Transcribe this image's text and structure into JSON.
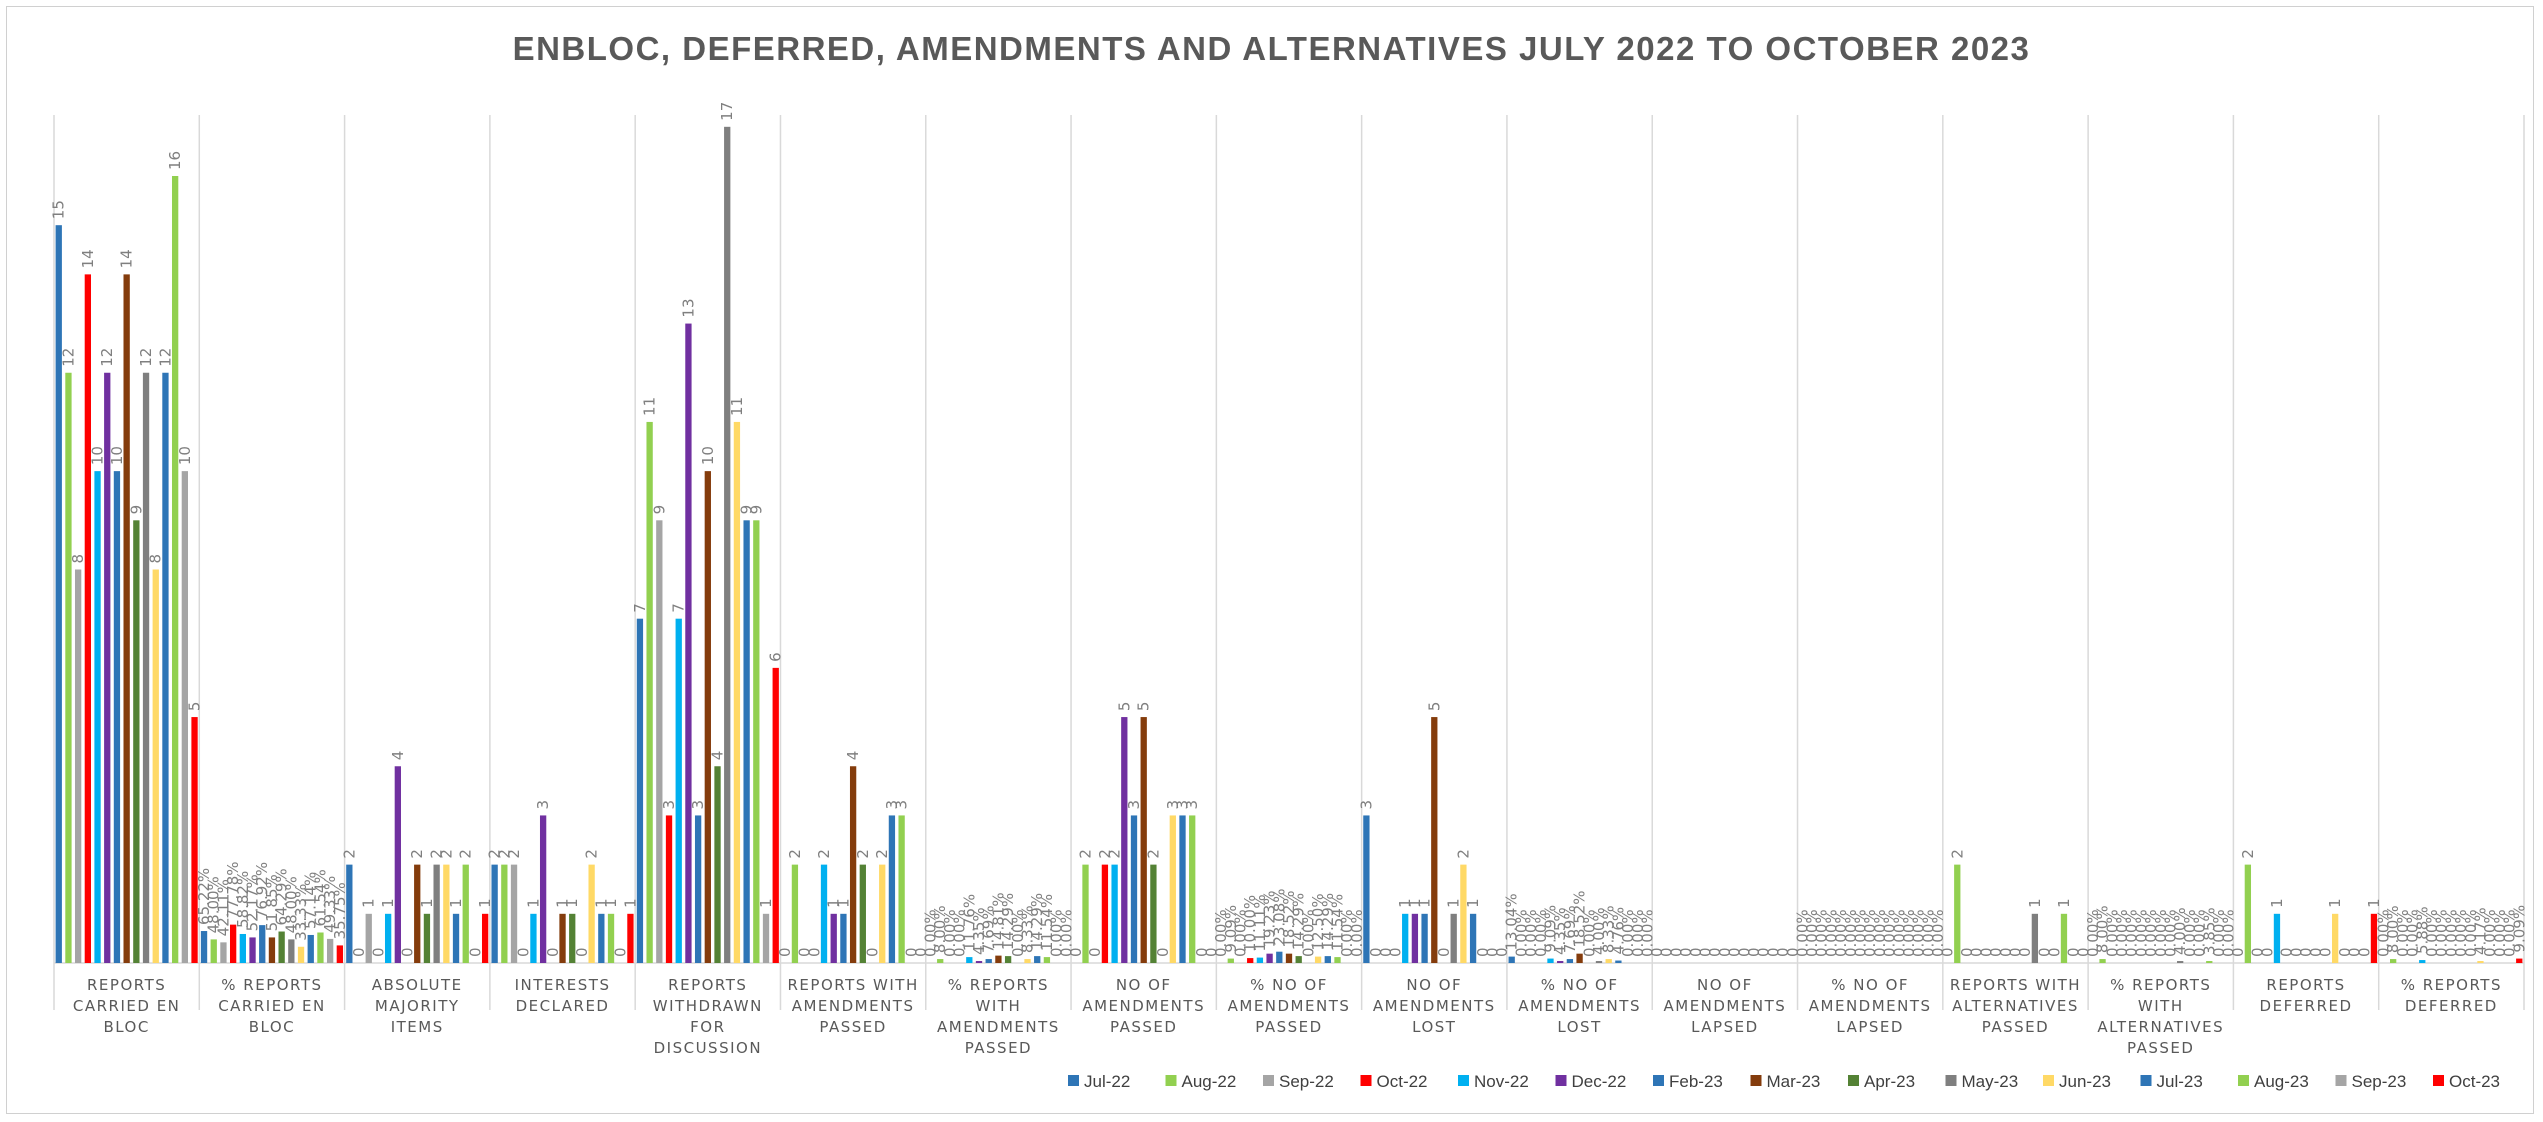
{
  "chart_data": {
    "type": "bar",
    "title": "ENBLOC, DEFERRED, AMENDMENTS AND ALTERNATIVES JULY 2022 TO OCTOBER 2023",
    "xlabel": "",
    "ylabel": "",
    "ylim": [
      0,
      19
    ],
    "grid": false,
    "legend_position": "bottom",
    "categories": [
      [
        "REPORTS",
        "CARRIED EN",
        "BLOC"
      ],
      [
        "% REPORTS",
        "CARRIED EN",
        "BLOC"
      ],
      [
        "ABSOLUTE",
        "MAJORITY",
        "ITEMS"
      ],
      [
        "INTERESTS",
        "DECLARED"
      ],
      [
        "REPORTS",
        "WITHDRAWN",
        "FOR",
        "DISCUSSION"
      ],
      [
        "REPORTS WITH",
        "AMENDMENTS",
        "PASSED"
      ],
      [
        "% REPORTS",
        "WITH",
        "AMENDMENTS",
        "PASSED"
      ],
      [
        "NO OF",
        "AMENDMENTS",
        "PASSED"
      ],
      [
        "% NO OF",
        "AMENDMENTS",
        "PASSED"
      ],
      [
        "NO OF",
        "AMENDMENTS",
        "LOST"
      ],
      [
        "% NO OF",
        "AMENDMENTS",
        "LOST"
      ],
      [
        "NO OF",
        "AMENDMENTS",
        "LAPSED"
      ],
      [
        "% NO OF",
        "AMENDMENTS",
        "LAPSED"
      ],
      [
        "REPORTS WITH",
        "ALTERNATIVES",
        "PASSED"
      ],
      [
        "% REPORTS",
        "WITH",
        "ALTERNATIVES",
        "PASSED"
      ],
      [
        "REPORTS",
        "DEFERRED"
      ],
      [
        "% REPORTS",
        "DEFERRED"
      ]
    ],
    "series": [
      {
        "name": "Jul-22",
        "color": "#2e75b6",
        "values": [
          15,
          0.65,
          2,
          2,
          7,
          0,
          0,
          0,
          0,
          3,
          0.13,
          0,
          0,
          0,
          0,
          0,
          0
        ]
      },
      {
        "name": "Aug-22",
        "color": "#92d050",
        "values": [
          12,
          0.48,
          0,
          2,
          11,
          2,
          0.08,
          2,
          0.09,
          0,
          0,
          0,
          0,
          2,
          0.08,
          2,
          0.08
        ]
      },
      {
        "name": "Sep-22",
        "color": "#a5a5a5",
        "values": [
          8,
          0.42,
          1,
          2,
          9,
          0,
          0,
          0,
          0,
          0,
          0,
          0,
          0,
          0,
          0,
          0,
          0
        ]
      },
      {
        "name": "Oct-22",
        "color": "#ff0000",
        "values": [
          14,
          0.78,
          0,
          0,
          3,
          0,
          0,
          2,
          0.1,
          0,
          0,
          0,
          0,
          0,
          0,
          0,
          0
        ]
      },
      {
        "name": "Nov-22",
        "color": "#00b0f0",
        "values": [
          10,
          0.59,
          1,
          1,
          7,
          2,
          0.12,
          2,
          0.11,
          1,
          0.09,
          0,
          0,
          0,
          0,
          1,
          0.06
        ]
      },
      {
        "name": "Dec-22",
        "color": "#7030a0",
        "values": [
          12,
          0.52,
          4,
          3,
          13,
          1,
          0.04,
          5,
          0.19,
          1,
          0.04,
          0,
          0,
          0,
          0,
          0,
          0
        ]
      },
      {
        "name": "Feb-23",
        "color": "#2e75b6",
        "values": [
          10,
          0.77,
          0,
          0,
          3,
          1,
          0.08,
          3,
          0.23,
          1,
          0.08,
          0,
          0,
          0,
          0,
          0,
          0
        ]
      },
      {
        "name": "Mar-23",
        "color": "#843c0c",
        "values": [
          14,
          0.52,
          2,
          1,
          10,
          4,
          0.15,
          5,
          0.19,
          5,
          0.19,
          0,
          0,
          0,
          0,
          0,
          0
        ]
      },
      {
        "name": "Apr-23",
        "color": "#548235",
        "values": [
          9,
          0.64,
          1,
          1,
          4,
          2,
          0.14,
          2,
          0.14,
          0,
          0,
          0,
          0,
          0,
          0,
          0,
          0
        ]
      },
      {
        "name": "May-23",
        "color": "#7f7f7f",
        "values": [
          12,
          0.48,
          2,
          0,
          17,
          0,
          0,
          0,
          0,
          1,
          0.04,
          0,
          0,
          1,
          0.04,
          0,
          0
        ]
      },
      {
        "name": "Jun-23",
        "color": "#ffd966",
        "values": [
          8,
          0.33,
          2,
          2,
          11,
          2,
          0.08,
          3,
          0.13,
          2,
          0.08,
          0,
          0,
          0,
          0,
          1,
          0.04
        ]
      },
      {
        "name": "Jul-23",
        "color": "#2e75b6",
        "values": [
          12,
          0.57,
          1,
          1,
          9,
          3,
          0.14,
          3,
          0.14,
          1,
          0.05,
          0,
          0,
          0,
          0,
          0,
          0
        ]
      },
      {
        "name": "Aug-23",
        "color": "#92d050",
        "values": [
          16,
          0.62,
          2,
          1,
          9,
          3,
          0.12,
          3,
          0.12,
          0,
          0,
          0,
          0,
          1,
          0.04,
          0,
          0
        ]
      },
      {
        "name": "Sep-23",
        "color": "#a5a5a5",
        "values": [
          10,
          0.49,
          0,
          0,
          1,
          0,
          0,
          0,
          0,
          0,
          0,
          0,
          0,
          0,
          0,
          0,
          0
        ]
      },
      {
        "name": "Oct-23",
        "color": "#ff0000",
        "values": [
          5,
          0.3575,
          1,
          1,
          6,
          0,
          0,
          0,
          0,
          0,
          0,
          0,
          0,
          0,
          0,
          1,
          0.09
        ]
      }
    ],
    "data_labels": [
      [
        "15",
        "65.22%",
        "2",
        "2",
        "7",
        "0",
        "0.00%",
        "0",
        "0.00%",
        "3",
        "13.04%",
        "0",
        "0.00%",
        "0",
        "0.00%",
        "0",
        "0.00%"
      ],
      [
        "12",
        "48.00%",
        "0",
        "2",
        "11",
        "2",
        "8.00%",
        "2",
        "9.09%",
        "0",
        "0.00%",
        "0",
        "0.00%",
        "2",
        "8.00%",
        "2",
        "8.00%"
      ],
      [
        "8",
        "42.11%",
        "1",
        "2",
        "9",
        "0",
        "0.00%",
        "0",
        "0.00%",
        "0",
        "0.00%",
        "0",
        "0.00%",
        "0",
        "0.00%",
        "0",
        "0.00%"
      ],
      [
        "14",
        "77.78%",
        "0",
        "0",
        "3",
        "0",
        "0.00%",
        "2",
        "10.00%",
        "0",
        "0.00%",
        "0",
        "0.00%",
        "0",
        "0.00%",
        "0",
        "0.00%"
      ],
      [
        "10",
        "58.82%",
        "1",
        "1",
        "7",
        "2",
        "11.76%",
        "2",
        "11.11%",
        "1",
        "9.09%",
        "0",
        "0.00%",
        "0",
        "0.00%",
        "1",
        "5.88%"
      ],
      [
        "12",
        "52.17%",
        "4",
        "3",
        "13",
        "1",
        "4.35%",
        "5",
        "19.23%",
        "1",
        "4.35%",
        "0",
        "0.00%",
        "0",
        "0.00%",
        "0",
        "0.00%"
      ],
      [
        "10",
        "76.92%",
        "0",
        "0",
        "3",
        "1",
        "7.69%",
        "3",
        "23.08%",
        "1",
        "7.69%",
        "0",
        "0.00%",
        "0",
        "0.00%",
        "0",
        "0.00%"
      ],
      [
        "14",
        "51.85%",
        "2",
        "1",
        "10",
        "4",
        "14.81%",
        "5",
        "18.52%",
        "5",
        "18.52%",
        "0",
        "0.00%",
        "0",
        "0.00%",
        "0",
        "0.00%"
      ],
      [
        "9",
        "64.29%",
        "1",
        "1",
        "4",
        "2",
        "14.29%",
        "2",
        "14.29%",
        "0",
        "0.00%",
        "0",
        "0.00%",
        "0",
        "0.00%",
        "0",
        "0.00%"
      ],
      [
        "12",
        "48.00%",
        "2",
        "0",
        "17",
        "0",
        "0.00%",
        "0",
        "0.00%",
        "1",
        "4.00%",
        "0",
        "0.00%",
        "1",
        "4.00%",
        "0",
        "0.00%"
      ],
      [
        "8",
        "33.33%",
        "2",
        "2",
        "11",
        "2",
        "8.33%",
        "3",
        "12.50%",
        "2",
        "8.33%",
        "0",
        "0.00%",
        "0",
        "0.00%",
        "1",
        "4.17%"
      ],
      [
        "12",
        "57.14%",
        "1",
        "1",
        "9",
        "3",
        "14.29%",
        "3",
        "14.29%",
        "1",
        "4.76%",
        "0",
        "0.00%",
        "0",
        "0.00%",
        "0",
        "0.00%"
      ],
      [
        "16",
        "61.54%",
        "2",
        "1",
        "9",
        "3",
        "11.54%",
        "3",
        "11.54%",
        "0",
        "0.00%",
        "0",
        "0.00%",
        "1",
        "3.85%",
        "0",
        "0.00%"
      ],
      [
        "10",
        "49.33%",
        "0",
        "0",
        "1",
        "0",
        "0.00%",
        "0",
        "0.00%",
        "0",
        "0.00%",
        "0",
        "0.00%",
        "0",
        "0.00%",
        "0",
        "0.00%"
      ],
      [
        "5",
        "35.75%",
        "1",
        "1",
        "6",
        "0",
        "0.00%",
        "0",
        "0.00%",
        "0",
        "0.00%",
        "0",
        "0.00%",
        "0",
        "0.00%",
        "1",
        "9.09%"
      ]
    ]
  }
}
